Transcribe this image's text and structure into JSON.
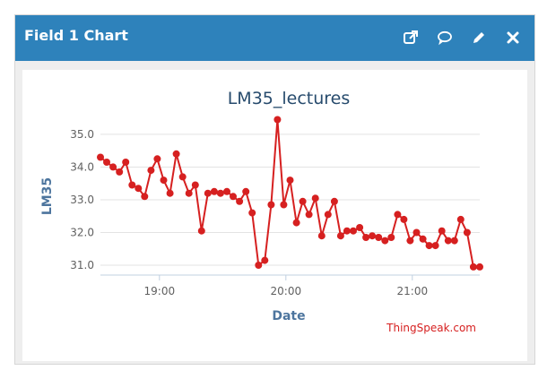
{
  "widget": {
    "title": "Field 1 Chart"
  },
  "toolbar": {
    "popout_icon": "external-link-icon",
    "comment_icon": "comment-icon",
    "edit_icon": "pencil-icon",
    "close_icon": "close-icon"
  },
  "colors": {
    "header": "#2e82bb",
    "series": "#d62020",
    "credit": "#d62020"
  },
  "credit": "ThingSpeak.com",
  "chart_data": {
    "type": "line",
    "title": "LM35_lectures",
    "xlabel": "Date",
    "ylabel": "LM35",
    "ylim": [
      30.7,
      35.6
    ],
    "xlim": [
      "18:32",
      "21:32"
    ],
    "yticks": [
      "31.0",
      "32.0",
      "33.0",
      "34.0",
      "35.0"
    ],
    "xticks": [
      "19:00",
      "20:00",
      "21:00"
    ],
    "grid": true,
    "legend": "none",
    "series": [
      {
        "x": [
          "18:32",
          "18:35",
          "18:38",
          "18:41",
          "18:44",
          "18:47",
          "18:50",
          "18:53",
          "18:56",
          "18:59",
          "19:02",
          "19:05",
          "19:08",
          "19:11",
          "19:14",
          "19:17",
          "19:20",
          "19:23",
          "19:26",
          "19:29",
          "19:32",
          "19:35",
          "19:38",
          "19:41",
          "19:44",
          "19:47",
          "19:50",
          "19:53",
          "19:56",
          "19:59",
          "20:02",
          "20:05",
          "20:08",
          "20:11",
          "20:14",
          "20:17",
          "20:20",
          "20:23",
          "20:26",
          "20:29",
          "20:32",
          "20:35",
          "20:38",
          "20:41",
          "20:44",
          "20:47",
          "20:50",
          "20:53",
          "20:56",
          "20:59",
          "21:02",
          "21:05",
          "21:08",
          "21:11",
          "21:14",
          "21:17",
          "21:20",
          "21:23",
          "21:26",
          "21:29",
          "21:32"
        ],
        "values": [
          34.3,
          34.15,
          34.0,
          33.85,
          34.15,
          33.45,
          33.35,
          33.1,
          33.9,
          34.25,
          33.6,
          33.2,
          34.4,
          33.7,
          33.2,
          33.45,
          32.05,
          33.2,
          33.25,
          33.2,
          33.25,
          33.1,
          32.95,
          33.25,
          32.6,
          31.0,
          31.15,
          32.85,
          35.45,
          32.85,
          33.6,
          32.3,
          32.95,
          32.55,
          33.05,
          31.9,
          32.55,
          32.95,
          31.9,
          32.05,
          32.05,
          32.15,
          31.85,
          31.9,
          31.85,
          31.75,
          31.85,
          32.55,
          32.4,
          31.75,
          32.0,
          31.8,
          31.6,
          31.6,
          32.05,
          31.75,
          31.75,
          32.4,
          32.0,
          30.95,
          30.95
        ]
      }
    ]
  }
}
